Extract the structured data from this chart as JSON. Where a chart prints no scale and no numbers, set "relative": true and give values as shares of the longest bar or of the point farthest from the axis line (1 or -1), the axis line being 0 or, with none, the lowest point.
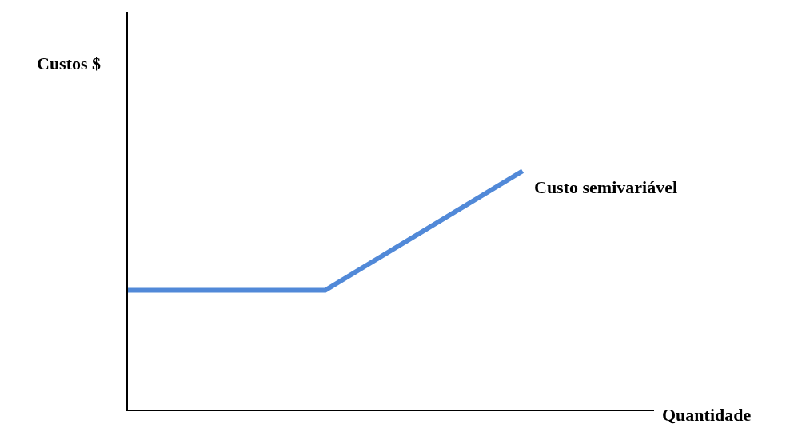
{
  "chart_data": {
    "type": "line",
    "relative": true,
    "xlabel": "Quantidade",
    "categories": [
      null,
      null,
      null
    ],
    "series": [
      {
        "color": "#5189d8",
        "values": [
          0.5,
          0.5,
          1
        ]
      }
    ],
    "annotations": [
      "Custo semivariável",
      "Custos $"
    ]
  }
}
